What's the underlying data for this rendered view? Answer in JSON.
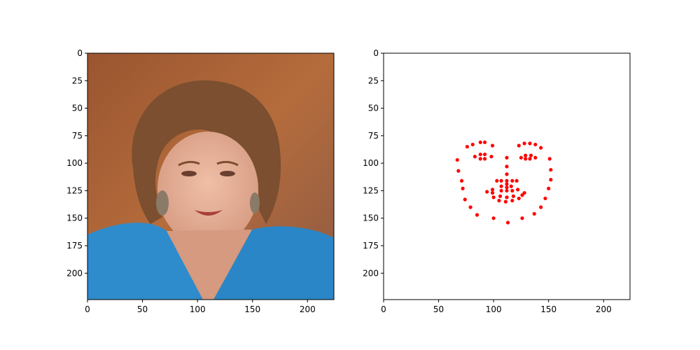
{
  "chart_data": [
    {
      "type": "image",
      "title": "",
      "xlabel": "",
      "ylabel": "",
      "xlim": [
        0,
        224
      ],
      "ylim": [
        224,
        0
      ],
      "x_ticks": [
        0,
        50,
        100,
        150,
        200
      ],
      "y_ticks": [
        0,
        25,
        50,
        75,
        100,
        125,
        150,
        175,
        200
      ],
      "grid": false,
      "image_content": "face-photo",
      "colors": {
        "bg_top": "#9a5a32",
        "bg_mid": "#b06a38",
        "hair": "#7a5030",
        "skin": "#e0a890",
        "shirt": "#2f8ccc"
      }
    },
    {
      "type": "scatter",
      "title": "",
      "xlabel": "",
      "ylabel": "",
      "xlim": [
        0,
        224
      ],
      "ylim": [
        224,
        0
      ],
      "x_ticks": [
        0,
        50,
        100,
        150,
        200
      ],
      "y_ticks": [
        0,
        25,
        50,
        75,
        100,
        125,
        150,
        175,
        200
      ],
      "grid": false,
      "marker_color": "#ff0000",
      "points": [
        [
          67,
          97
        ],
        [
          68,
          107
        ],
        [
          71,
          116
        ],
        [
          72,
          123
        ],
        [
          74,
          133
        ],
        [
          79,
          140
        ],
        [
          85,
          147
        ],
        [
          100,
          150
        ],
        [
          113,
          154
        ],
        [
          126,
          150
        ],
        [
          137,
          146
        ],
        [
          143,
          140
        ],
        [
          147,
          132
        ],
        [
          150,
          123
        ],
        [
          152,
          115
        ],
        [
          152,
          106
        ],
        [
          151,
          96
        ],
        [
          76,
          85
        ],
        [
          81,
          83
        ],
        [
          88,
          81
        ],
        [
          92,
          81
        ],
        [
          99,
          84
        ],
        [
          123,
          84
        ],
        [
          128,
          82
        ],
        [
          133,
          82
        ],
        [
          138,
          83
        ],
        [
          143,
          86
        ],
        [
          112,
          95
        ],
        [
          112,
          103
        ],
        [
          112,
          110
        ],
        [
          112,
          116
        ],
        [
          103,
          116
        ],
        [
          107,
          116
        ],
        [
          112,
          119
        ],
        [
          117,
          116
        ],
        [
          121,
          116
        ],
        [
          83,
          94
        ],
        [
          88,
          92
        ],
        [
          92,
          92
        ],
        [
          98,
          94
        ],
        [
          92,
          96
        ],
        [
          88,
          96
        ],
        [
          125,
          95
        ],
        [
          129,
          93
        ],
        [
          134,
          93
        ],
        [
          138,
          95
        ],
        [
          133,
          96
        ],
        [
          129,
          96
        ],
        [
          94,
          126
        ],
        [
          99,
          124
        ],
        [
          107,
          121
        ],
        [
          112,
          122
        ],
        [
          116,
          121
        ],
        [
          122,
          124
        ],
        [
          128,
          127
        ],
        [
          123,
          132
        ],
        [
          117,
          134
        ],
        [
          111,
          135
        ],
        [
          105,
          134
        ],
        [
          100,
          131
        ],
        [
          99,
          127
        ],
        [
          107,
          125
        ],
        [
          112,
          125
        ],
        [
          117,
          125
        ],
        [
          126,
          129
        ],
        [
          118,
          130
        ],
        [
          112,
          131
        ],
        [
          106,
          130
        ]
      ]
    }
  ]
}
